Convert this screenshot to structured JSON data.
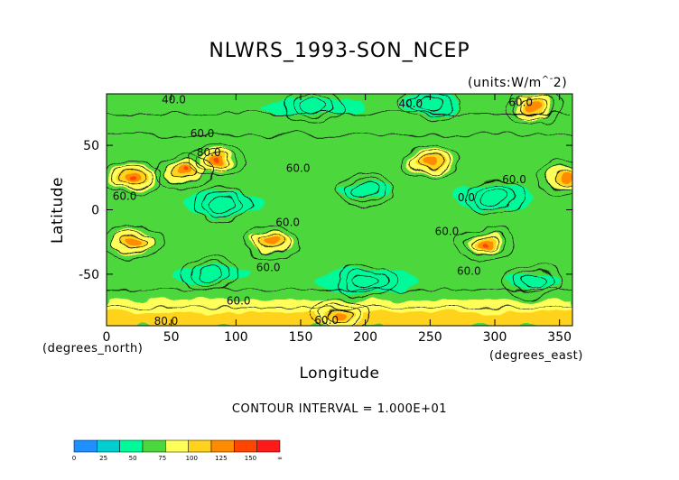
{
  "chart_data": {
    "type": "heatmap",
    "title": "NLWRS_1993-SON_NCEP",
    "units_note": "(units:W/m^2)",
    "xlabel": "Longitude",
    "ylabel": "Latitude",
    "x_units_note": "(degrees_north)",
    "y_units_note": "(degrees_east)",
    "xlim": [
      0,
      360
    ],
    "ylim": [
      -90,
      90
    ],
    "x_ticks": [
      "0",
      "50",
      "100",
      "150",
      "200",
      "250",
      "300",
      "350"
    ],
    "y_ticks": [
      "50",
      "0",
      "-50"
    ],
    "contour_interval_text": "CONTOUR INTERVAL = 1.000E+01",
    "contour_labels": [
      {
        "text": "40.0",
        "x": 52,
        "y": 85
      },
      {
        "text": "40.0",
        "x": 235,
        "y": 82
      },
      {
        "text": "60.0",
        "x": 320,
        "y": 83
      },
      {
        "text": "60.0",
        "x": 74,
        "y": 59
      },
      {
        "text": "80.0",
        "x": 79,
        "y": 44
      },
      {
        "text": "60.0",
        "x": 148,
        "y": 32
      },
      {
        "text": "60.0",
        "x": 14,
        "y": 10
      },
      {
        "text": "0.0",
        "x": 278,
        "y": 9
      },
      {
        "text": "60.0",
        "x": 315,
        "y": 23
      },
      {
        "text": "60.0",
        "x": 140,
        "y": -10
      },
      {
        "text": "60.0",
        "x": 263,
        "y": -17
      },
      {
        "text": "60.0",
        "x": 125,
        "y": -45
      },
      {
        "text": "60.0",
        "x": 280,
        "y": -48
      },
      {
        "text": "60.0",
        "x": 102,
        "y": -71
      },
      {
        "text": "80.0",
        "x": 46,
        "y": -87
      },
      {
        "text": "60.0",
        "x": 170,
        "y": -86
      }
    ],
    "colorbar": {
      "colors": [
        "#1e90ff",
        "#00ced1",
        "#00fa9a",
        "#4cd83c",
        "#ffff5a",
        "#ffd21e",
        "#ff8c00",
        "#ff4500",
        "#ff1a1a"
      ],
      "labels": [
        "0",
        "25",
        "50",
        "75",
        "100",
        "125",
        "150",
        "∞"
      ]
    },
    "field_levels": {
      "above_100": [
        {
          "lon": 20,
          "lat": 25
        },
        {
          "lon": 60,
          "lat": 30
        },
        {
          "lon": 85,
          "lat": 38
        },
        {
          "lon": 128,
          "lat": -25
        },
        {
          "lon": 20,
          "lat": -25
        },
        {
          "lon": 293,
          "lat": -27
        },
        {
          "lon": 250,
          "lat": 37
        },
        {
          "lon": 355,
          "lat": 25
        },
        {
          "lon": 330,
          "lat": 80
        },
        {
          "lon": 180,
          "lat": -82
        }
      ],
      "below_50": [
        {
          "lon": 200,
          "lat": 15
        },
        {
          "lon": 90,
          "lat": 5
        },
        {
          "lon": 160,
          "lat": 80
        },
        {
          "lon": 250,
          "lat": 82
        },
        {
          "lon": 80,
          "lat": -50
        },
        {
          "lon": 200,
          "lat": -55
        },
        {
          "lon": 330,
          "lat": -55
        },
        {
          "lon": 300,
          "lat": 10
        }
      ]
    }
  }
}
